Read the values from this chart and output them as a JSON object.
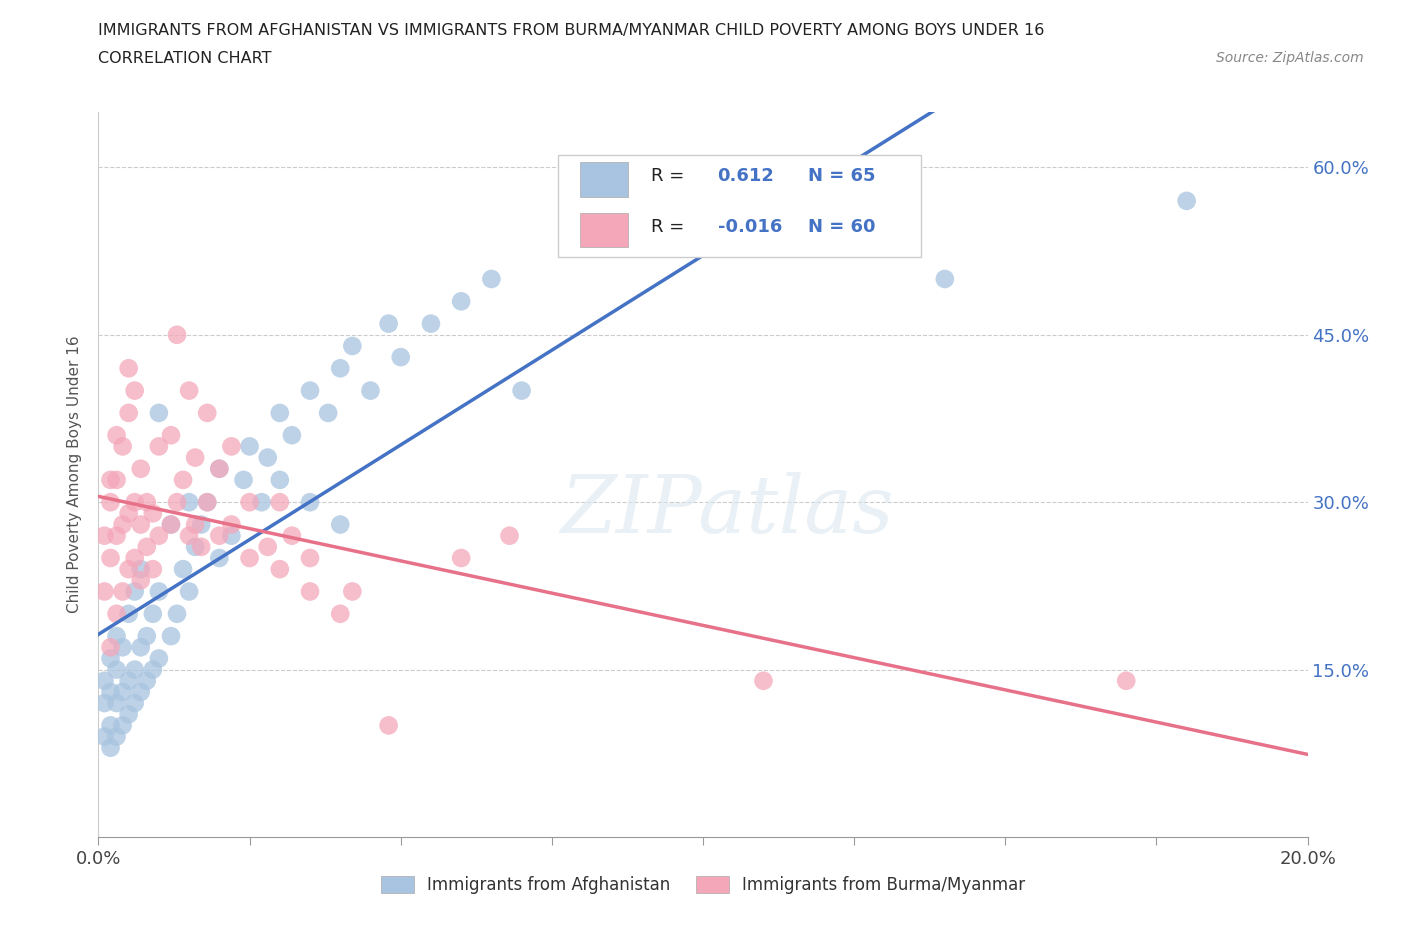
{
  "title_line1": "IMMIGRANTS FROM AFGHANISTAN VS IMMIGRANTS FROM BURMA/MYANMAR CHILD POVERTY AMONG BOYS UNDER 16",
  "title_line2": "CORRELATION CHART",
  "source_text": "Source: ZipAtlas.com",
  "ylabel": "Child Poverty Among Boys Under 16",
  "xlim": [
    0.0,
    0.2
  ],
  "ylim": [
    0.0,
    0.65
  ],
  "xticks": [
    0.0,
    0.025,
    0.05,
    0.075,
    0.1,
    0.125,
    0.15,
    0.175,
    0.2
  ],
  "ytick_positions": [
    0.15,
    0.3,
    0.45,
    0.6
  ],
  "ytick_labels": [
    "15.0%",
    "30.0%",
    "45.0%",
    "60.0%"
  ],
  "afghanistan_color": "#a8c4e0",
  "burma_color": "#f4a7b9",
  "afghanistan_line_color": "#4472C4",
  "burma_line_color": "#E8718A",
  "R_afghanistan": 0.612,
  "N_afghanistan": 65,
  "R_burma": -0.016,
  "N_burma": 60,
  "watermark": "ZIPatlas",
  "afghanistan_scatter": [
    [
      0.001,
      0.09
    ],
    [
      0.001,
      0.12
    ],
    [
      0.001,
      0.14
    ],
    [
      0.002,
      0.08
    ],
    [
      0.002,
      0.1
    ],
    [
      0.002,
      0.13
    ],
    [
      0.002,
      0.16
    ],
    [
      0.003,
      0.09
    ],
    [
      0.003,
      0.12
    ],
    [
      0.003,
      0.15
    ],
    [
      0.003,
      0.18
    ],
    [
      0.004,
      0.1
    ],
    [
      0.004,
      0.13
    ],
    [
      0.004,
      0.17
    ],
    [
      0.005,
      0.11
    ],
    [
      0.005,
      0.14
    ],
    [
      0.005,
      0.2
    ],
    [
      0.006,
      0.12
    ],
    [
      0.006,
      0.15
    ],
    [
      0.006,
      0.22
    ],
    [
      0.007,
      0.13
    ],
    [
      0.007,
      0.17
    ],
    [
      0.007,
      0.24
    ],
    [
      0.008,
      0.14
    ],
    [
      0.008,
      0.18
    ],
    [
      0.009,
      0.15
    ],
    [
      0.009,
      0.2
    ],
    [
      0.01,
      0.16
    ],
    [
      0.01,
      0.22
    ],
    [
      0.01,
      0.38
    ],
    [
      0.012,
      0.18
    ],
    [
      0.012,
      0.28
    ],
    [
      0.013,
      0.2
    ],
    [
      0.014,
      0.24
    ],
    [
      0.015,
      0.22
    ],
    [
      0.015,
      0.3
    ],
    [
      0.016,
      0.26
    ],
    [
      0.017,
      0.28
    ],
    [
      0.018,
      0.3
    ],
    [
      0.02,
      0.25
    ],
    [
      0.02,
      0.33
    ],
    [
      0.022,
      0.27
    ],
    [
      0.024,
      0.32
    ],
    [
      0.025,
      0.35
    ],
    [
      0.027,
      0.3
    ],
    [
      0.028,
      0.34
    ],
    [
      0.03,
      0.32
    ],
    [
      0.03,
      0.38
    ],
    [
      0.032,
      0.36
    ],
    [
      0.035,
      0.3
    ],
    [
      0.035,
      0.4
    ],
    [
      0.038,
      0.38
    ],
    [
      0.04,
      0.42
    ],
    [
      0.04,
      0.28
    ],
    [
      0.042,
      0.44
    ],
    [
      0.045,
      0.4
    ],
    [
      0.048,
      0.46
    ],
    [
      0.05,
      0.43
    ],
    [
      0.055,
      0.46
    ],
    [
      0.06,
      0.48
    ],
    [
      0.065,
      0.5
    ],
    [
      0.07,
      0.4
    ],
    [
      0.08,
      0.55
    ],
    [
      0.14,
      0.5
    ],
    [
      0.18,
      0.57
    ]
  ],
  "burma_scatter": [
    [
      0.001,
      0.22
    ],
    [
      0.001,
      0.27
    ],
    [
      0.002,
      0.17
    ],
    [
      0.002,
      0.25
    ],
    [
      0.002,
      0.3
    ],
    [
      0.002,
      0.32
    ],
    [
      0.003,
      0.2
    ],
    [
      0.003,
      0.27
    ],
    [
      0.003,
      0.32
    ],
    [
      0.003,
      0.36
    ],
    [
      0.004,
      0.22
    ],
    [
      0.004,
      0.28
    ],
    [
      0.004,
      0.35
    ],
    [
      0.005,
      0.24
    ],
    [
      0.005,
      0.29
    ],
    [
      0.005,
      0.38
    ],
    [
      0.005,
      0.42
    ],
    [
      0.006,
      0.25
    ],
    [
      0.006,
      0.3
    ],
    [
      0.006,
      0.4
    ],
    [
      0.007,
      0.23
    ],
    [
      0.007,
      0.28
    ],
    [
      0.007,
      0.33
    ],
    [
      0.008,
      0.26
    ],
    [
      0.008,
      0.3
    ],
    [
      0.009,
      0.24
    ],
    [
      0.009,
      0.29
    ],
    [
      0.01,
      0.27
    ],
    [
      0.01,
      0.35
    ],
    [
      0.012,
      0.28
    ],
    [
      0.012,
      0.36
    ],
    [
      0.013,
      0.3
    ],
    [
      0.013,
      0.45
    ],
    [
      0.014,
      0.32
    ],
    [
      0.015,
      0.27
    ],
    [
      0.015,
      0.4
    ],
    [
      0.016,
      0.28
    ],
    [
      0.016,
      0.34
    ],
    [
      0.017,
      0.26
    ],
    [
      0.018,
      0.3
    ],
    [
      0.018,
      0.38
    ],
    [
      0.02,
      0.27
    ],
    [
      0.02,
      0.33
    ],
    [
      0.022,
      0.28
    ],
    [
      0.022,
      0.35
    ],
    [
      0.025,
      0.25
    ],
    [
      0.025,
      0.3
    ],
    [
      0.028,
      0.26
    ],
    [
      0.03,
      0.24
    ],
    [
      0.03,
      0.3
    ],
    [
      0.032,
      0.27
    ],
    [
      0.035,
      0.22
    ],
    [
      0.035,
      0.25
    ],
    [
      0.04,
      0.2
    ],
    [
      0.042,
      0.22
    ],
    [
      0.048,
      0.1
    ],
    [
      0.06,
      0.25
    ],
    [
      0.068,
      0.27
    ],
    [
      0.11,
      0.14
    ],
    [
      0.17,
      0.14
    ]
  ]
}
